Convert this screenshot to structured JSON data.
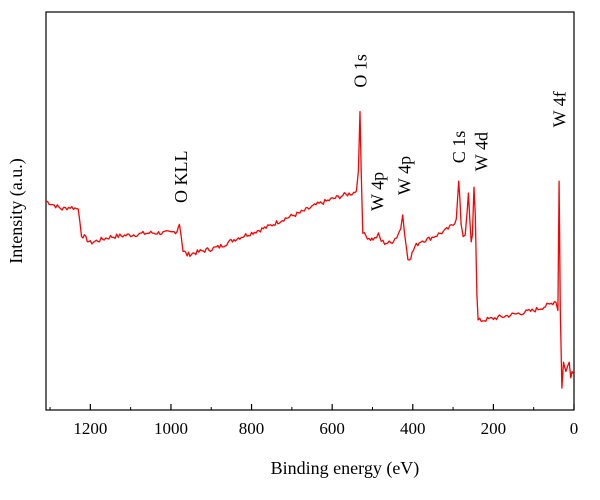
{
  "chart_data": {
    "type": "line",
    "title": "",
    "xlabel": "Binding energy (eV)",
    "ylabel": "Intensity (a.u.)",
    "xlim": [
      1310,
      0
    ],
    "ylim": [
      0,
      100
    ],
    "x_reversed": true,
    "x_ticks": [
      1200,
      1000,
      800,
      600,
      400,
      200,
      0
    ],
    "y_ticks_visible": false,
    "grid": false,
    "legend": "none",
    "line_color": "#ff0000",
    "series": [
      {
        "x": [
          1310,
          1290,
          1270,
          1250,
          1230,
          1222,
          1215,
          1200,
          1150,
          1100,
          1050,
          1000,
          985,
          979,
          975,
          970,
          960,
          920,
          880,
          840,
          800,
          760,
          720,
          680,
          640,
          600,
          570,
          550,
          540,
          535,
          531,
          528,
          524,
          520,
          505,
          495,
          490,
          485,
          478,
          470,
          455,
          440,
          430,
          425,
          420,
          412,
          405,
          395,
          380,
          360,
          340,
          320,
          300,
          292,
          286,
          283,
          280,
          275,
          270,
          265,
          262,
          258,
          255,
          252,
          248,
          245,
          241,
          238,
          230,
          200,
          150,
          100,
          60,
          45,
          40,
          37,
          34,
          30,
          26,
          20,
          12,
          8,
          5,
          0
        ],
        "y": [
          52.5,
          51.5,
          50.5,
          51.0,
          50.5,
          44,
          43.5,
          42,
          43.5,
          44,
          44.5,
          44.5,
          45,
          47,
          44,
          40,
          39,
          40,
          41,
          43,
          44.5,
          46,
          48,
          49.5,
          51.5,
          53,
          54,
          54.5,
          55,
          60,
          75,
          60,
          45,
          44,
          43,
          43,
          43.5,
          44,
          42.5,
          42,
          42,
          43.5,
          45.5,
          49,
          44,
          38,
          38.5,
          41,
          42.5,
          43,
          44,
          45,
          46.5,
          48,
          57.5,
          53,
          47,
          44,
          44,
          50,
          54.5,
          47,
          42,
          44,
          56,
          49,
          29,
          22.5,
          22.5,
          23,
          24,
          25,
          26.5,
          27.5,
          25,
          57.5,
          25,
          5.5,
          12,
          10,
          12,
          8,
          10,
          9
        ]
      }
    ],
    "annotations": [
      {
        "text": "O KLL",
        "x": 975,
        "y": 52
      },
      {
        "text": "O 1s",
        "x": 530,
        "y": 81
      },
      {
        "text": "W 4p",
        "x": 488,
        "y": 50
      },
      {
        "text": "W 4p",
        "x": 420,
        "y": 54
      },
      {
        "text": "C 1s",
        "x": 285,
        "y": 62
      },
      {
        "text": "W 4d",
        "x": 230,
        "y": 60
      },
      {
        "text": "W 4f",
        "x": 36,
        "y": 71
      }
    ]
  }
}
